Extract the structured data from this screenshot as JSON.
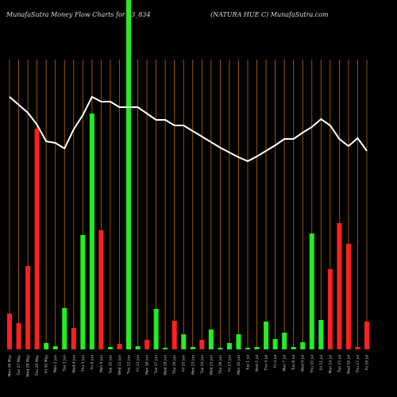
{
  "chart_data": {
    "type": "bar-line",
    "title": "MunafaSutra  Money Flow  Charts for 53_834",
    "subtitle": "(NATURA HUE C) MunafaSutra.com",
    "categories": [
      "Mon 26 May",
      "Tue 27 May",
      "Wed 28 May",
      "Thu 29 May",
      "Fri 30 May",
      "Mon 2 Jun",
      "Tue 3 Jun",
      "Wed 4 Jun",
      "Thu 5 Jun",
      "Fri 6 Jun",
      "Mon 9 Jun",
      "Tue 10 Jun",
      "Wed 11 Jun",
      "Thu 12 Jun",
      "Fri 13 Jun",
      "Mon 16 Jun",
      "Tue 17 Jun",
      "Wed 18 Jun",
      "Thu 19 Jun",
      "Fri 20 Jun",
      "Mon 23 Jun",
      "Tue 24 Jun",
      "Wed 25 Jun",
      "Thu 26 Jun",
      "Fri 27 Jun",
      "Mon 30 Jun",
      "Tue 1 Jul",
      "Wed 2 Jul",
      "Thu 3 Jul",
      "Fri 4 Jul",
      "Mon 7 Jul",
      "Tue 8 Jul",
      "Wed 9 Jul",
      "Thu 10 Jul",
      "Fri 11 Jul",
      "Mon 14 Jul",
      "Tue 15 Jul",
      "Wed 16 Jul",
      "Thu 17 Jul",
      "Fri 18 Jul"
    ],
    "series": [
      {
        "kind": "bar",
        "values": [
          45,
          33,
          105,
          278,
          8,
          4,
          52,
          27,
          144,
          297,
          150,
          3,
          7,
          440,
          4,
          12,
          51,
          2,
          36,
          19,
          3,
          12,
          25,
          2,
          8,
          19,
          2,
          3,
          35,
          13,
          21,
          3,
          9,
          146,
          37,
          101,
          159,
          133,
          3,
          35
        ],
        "colors": [
          "#ff2020",
          "#ff2020",
          "#ff2020",
          "#ff2020",
          "#22ee22",
          "#22ee22",
          "#22ee22",
          "#ff2020",
          "#22ee22",
          "#22ee22",
          "#ff2020",
          "#22ee22",
          "#ff2020",
          "#22ee22",
          "#22ee22",
          "#ff2020",
          "#22ee22",
          "#22ee22",
          "#ff2020",
          "#22ee22",
          "#22ee22",
          "#ff2020",
          "#22ee22",
          "#22ee22",
          "#22ee22",
          "#22ee22",
          "#22ee22",
          "#22ee22",
          "#22ee22",
          "#22ee22",
          "#22ee22",
          "#22ee22",
          "#22ee22",
          "#22ee22",
          "#22ee22",
          "#ff2020",
          "#ff2020",
          "#ff2020",
          "#ff2020",
          "#ff2020"
        ]
      },
      {
        "kind": "line",
        "color": "#ffffff",
        "values": [
          318,
          308,
          298,
          283,
          262,
          260,
          253,
          277,
          295,
          318,
          312,
          312,
          305,
          305,
          305,
          297,
          289,
          289,
          282,
          282,
          275,
          268,
          261,
          254,
          248,
          242,
          237,
          243,
          250,
          257,
          265,
          265,
          273,
          280,
          290,
          282,
          265,
          256,
          266,
          250
        ]
      }
    ],
    "ylim": [
      0,
      440
    ],
    "grid_color": "#b8690e",
    "grid": true
  }
}
